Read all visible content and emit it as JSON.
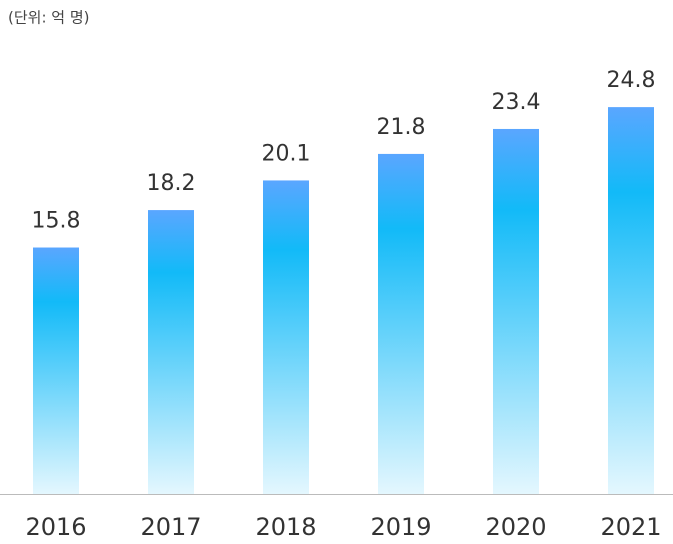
{
  "chart_data": {
    "type": "bar",
    "subtitle": "(단위: 억 명)",
    "categories": [
      "2016",
      "2017",
      "2018",
      "2019",
      "2020",
      "2021"
    ],
    "values": [
      15.8,
      18.2,
      20.1,
      21.8,
      23.4,
      24.8
    ],
    "colors": [
      "#5aa6ff",
      "#12baf8",
      "#e4f7fe"
    ],
    "ylim": [
      0,
      30
    ]
  }
}
